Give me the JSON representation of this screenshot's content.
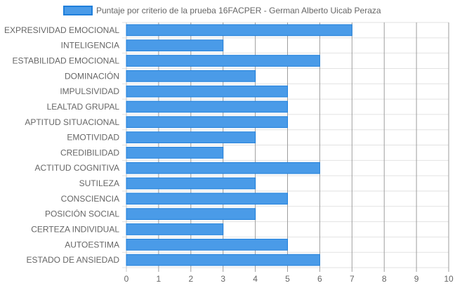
{
  "chart_data": {
    "type": "bar",
    "orientation": "horizontal",
    "categories": [
      "EXPRESIVIDAD EMOCIONAL",
      "INTELIGENCIA",
      "ESTABILIDAD EMOCIONAL",
      "DOMINACIÓN",
      "IMPULSIVIDAD",
      "LEALTAD GRUPAL",
      "APTITUD SITUACIONAL",
      "EMOTIVIDAD",
      "CREDIBILIDAD",
      "ACTITUD COGNITIVA",
      "SUTILEZA",
      "CONSCIENCIA",
      "POSICIÓN SOCIAL",
      "CERTEZA INDIVIDUAL",
      "AUTOESTIMA",
      "ESTADO DE ANSIEDAD"
    ],
    "series": [
      {
        "name": "Puntaje por criterio de la prueba 16FACPER - German Alberto Uicab Peraza",
        "values": [
          7,
          3,
          6,
          4,
          5,
          5,
          5,
          4,
          3,
          6,
          4,
          5,
          4,
          3,
          5,
          6
        ],
        "color": "#4a9be8",
        "border_color": "#1f7fdb"
      }
    ],
    "xlim": [
      0,
      10
    ],
    "x_ticks": [
      "0",
      "1",
      "2",
      "3",
      "4",
      "5",
      "6",
      "7",
      "8",
      "9",
      "10"
    ],
    "grid": true,
    "legend_position": "top"
  }
}
